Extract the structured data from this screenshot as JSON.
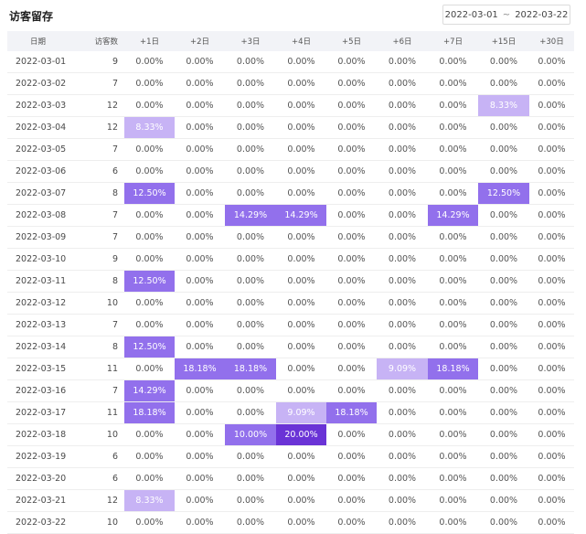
{
  "header": {
    "title": "访客留存",
    "range_start": "2022-03-01",
    "range_sep": "~",
    "range_end": "2022-03-22"
  },
  "columns": [
    "日期",
    "访客数",
    "+1日",
    "+2日",
    "+3日",
    "+4日",
    "+5日",
    "+6日",
    "+7日",
    "+15日",
    "+30日"
  ],
  "colors": {
    "lv1": "#c7b3f5",
    "lv2": "#a98af0",
    "lv3": "#9270ec",
    "lv4": "#6a33d6",
    "header_bg": "#f2f3f7"
  },
  "rows": [
    {
      "date": "2022-03-01",
      "count": "9",
      "vals": [
        "0.00%",
        "0.00%",
        "0.00%",
        "0.00%",
        "0.00%",
        "0.00%",
        "0.00%",
        "0.00%",
        "0.00%"
      ]
    },
    {
      "date": "2022-03-02",
      "count": "7",
      "vals": [
        "0.00%",
        "0.00%",
        "0.00%",
        "0.00%",
        "0.00%",
        "0.00%",
        "0.00%",
        "0.00%",
        "0.00%"
      ]
    },
    {
      "date": "2022-03-03",
      "count": "12",
      "vals": [
        "0.00%",
        "0.00%",
        "0.00%",
        "0.00%",
        "0.00%",
        "0.00%",
        "0.00%",
        "8.33%",
        "0.00%"
      ]
    },
    {
      "date": "2022-03-04",
      "count": "12",
      "vals": [
        "8.33%",
        "0.00%",
        "0.00%",
        "0.00%",
        "0.00%",
        "0.00%",
        "0.00%",
        "0.00%",
        "0.00%"
      ]
    },
    {
      "date": "2022-03-05",
      "count": "7",
      "vals": [
        "0.00%",
        "0.00%",
        "0.00%",
        "0.00%",
        "0.00%",
        "0.00%",
        "0.00%",
        "0.00%",
        "0.00%"
      ]
    },
    {
      "date": "2022-03-06",
      "count": "6",
      "vals": [
        "0.00%",
        "0.00%",
        "0.00%",
        "0.00%",
        "0.00%",
        "0.00%",
        "0.00%",
        "0.00%",
        "0.00%"
      ]
    },
    {
      "date": "2022-03-07",
      "count": "8",
      "vals": [
        "12.50%",
        "0.00%",
        "0.00%",
        "0.00%",
        "0.00%",
        "0.00%",
        "0.00%",
        "12.50%",
        "0.00%"
      ]
    },
    {
      "date": "2022-03-08",
      "count": "7",
      "vals": [
        "0.00%",
        "0.00%",
        "14.29%",
        "14.29%",
        "0.00%",
        "0.00%",
        "14.29%",
        "0.00%",
        "0.00%"
      ]
    },
    {
      "date": "2022-03-09",
      "count": "7",
      "vals": [
        "0.00%",
        "0.00%",
        "0.00%",
        "0.00%",
        "0.00%",
        "0.00%",
        "0.00%",
        "0.00%",
        "0.00%"
      ]
    },
    {
      "date": "2022-03-10",
      "count": "9",
      "vals": [
        "0.00%",
        "0.00%",
        "0.00%",
        "0.00%",
        "0.00%",
        "0.00%",
        "0.00%",
        "0.00%",
        "0.00%"
      ]
    },
    {
      "date": "2022-03-11",
      "count": "8",
      "vals": [
        "12.50%",
        "0.00%",
        "0.00%",
        "0.00%",
        "0.00%",
        "0.00%",
        "0.00%",
        "0.00%",
        "0.00%"
      ]
    },
    {
      "date": "2022-03-12",
      "count": "10",
      "vals": [
        "0.00%",
        "0.00%",
        "0.00%",
        "0.00%",
        "0.00%",
        "0.00%",
        "0.00%",
        "0.00%",
        "0.00%"
      ]
    },
    {
      "date": "2022-03-13",
      "count": "7",
      "vals": [
        "0.00%",
        "0.00%",
        "0.00%",
        "0.00%",
        "0.00%",
        "0.00%",
        "0.00%",
        "0.00%",
        "0.00%"
      ]
    },
    {
      "date": "2022-03-14",
      "count": "8",
      "vals": [
        "12.50%",
        "0.00%",
        "0.00%",
        "0.00%",
        "0.00%",
        "0.00%",
        "0.00%",
        "0.00%",
        "0.00%"
      ]
    },
    {
      "date": "2022-03-15",
      "count": "11",
      "vals": [
        "0.00%",
        "18.18%",
        "18.18%",
        "0.00%",
        "0.00%",
        "9.09%",
        "18.18%",
        "0.00%",
        "0.00%"
      ]
    },
    {
      "date": "2022-03-16",
      "count": "7",
      "vals": [
        "14.29%",
        "0.00%",
        "0.00%",
        "0.00%",
        "0.00%",
        "0.00%",
        "0.00%",
        "0.00%",
        "0.00%"
      ]
    },
    {
      "date": "2022-03-17",
      "count": "11",
      "vals": [
        "18.18%",
        "0.00%",
        "0.00%",
        "9.09%",
        "18.18%",
        "0.00%",
        "0.00%",
        "0.00%",
        "0.00%"
      ]
    },
    {
      "date": "2022-03-18",
      "count": "10",
      "vals": [
        "0.00%",
        "0.00%",
        "10.00%",
        "20.00%",
        "0.00%",
        "0.00%",
        "0.00%",
        "0.00%",
        "0.00%"
      ]
    },
    {
      "date": "2022-03-19",
      "count": "6",
      "vals": [
        "0.00%",
        "0.00%",
        "0.00%",
        "0.00%",
        "0.00%",
        "0.00%",
        "0.00%",
        "0.00%",
        "0.00%"
      ]
    },
    {
      "date": "2022-03-20",
      "count": "6",
      "vals": [
        "0.00%",
        "0.00%",
        "0.00%",
        "0.00%",
        "0.00%",
        "0.00%",
        "0.00%",
        "0.00%",
        "0.00%"
      ]
    },
    {
      "date": "2022-03-21",
      "count": "12",
      "vals": [
        "8.33%",
        "0.00%",
        "0.00%",
        "0.00%",
        "0.00%",
        "0.00%",
        "0.00%",
        "0.00%",
        "0.00%"
      ]
    },
    {
      "date": "2022-03-22",
      "count": "10",
      "vals": [
        "0.00%",
        "0.00%",
        "0.00%",
        "0.00%",
        "0.00%",
        "0.00%",
        "0.00%",
        "0.00%",
        "0.00%"
      ]
    }
  ]
}
